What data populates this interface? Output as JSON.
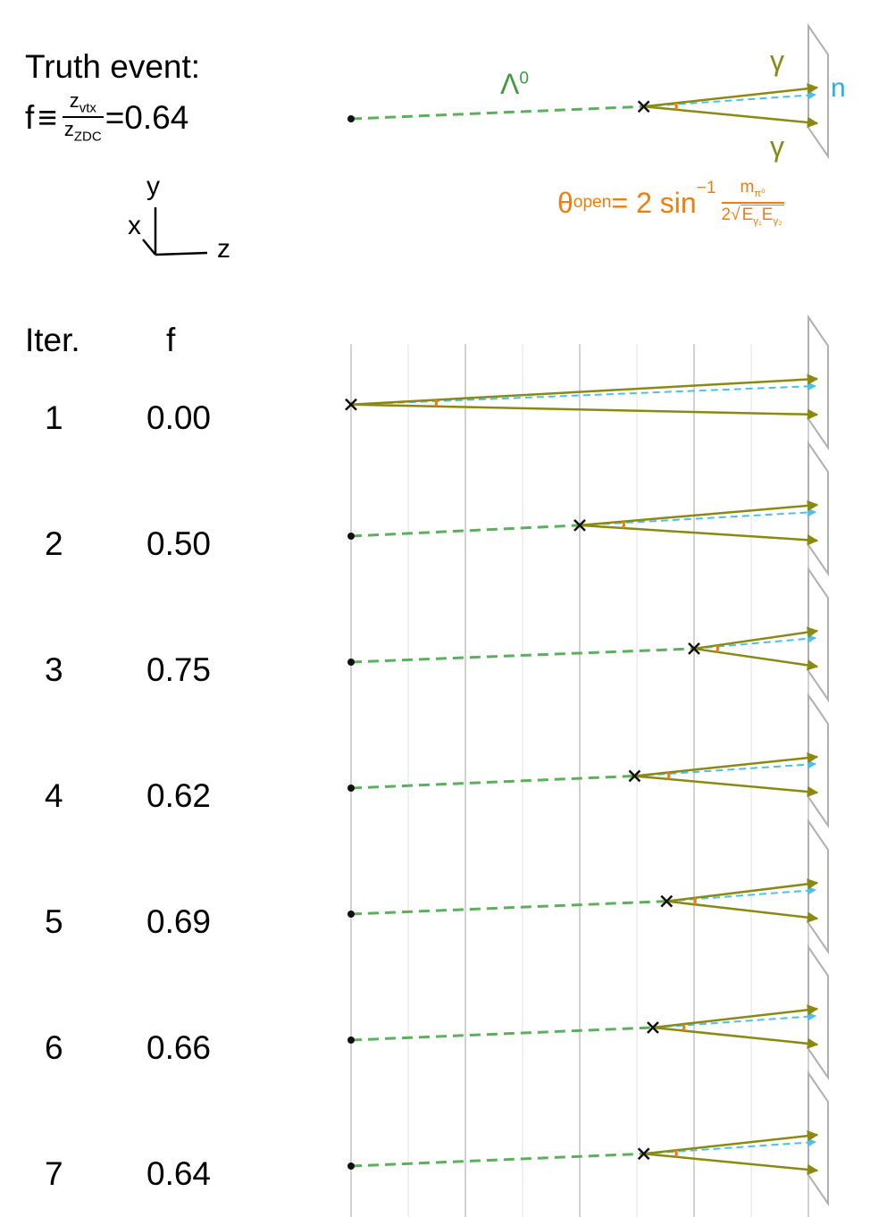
{
  "header": {
    "truth_label": "Truth event:",
    "f_symbol": "f",
    "equiv": "≡",
    "frac_num": "z",
    "frac_num_sub": "vtx",
    "frac_den": "z",
    "frac_den_sub": "ZDC",
    "truth_value": "=0.64"
  },
  "axes": {
    "y": "y",
    "x": "x",
    "z": "z"
  },
  "top_diagram": {
    "lambda_label": "Λ",
    "lambda_sup": "0",
    "gamma_label": "γ",
    "neutron_label": "n",
    "truth_fraction": 0.64,
    "opening_formula": {
      "theta": "θ",
      "theta_sub": "open",
      "eq": " = 2 sin",
      "eq_sup": "−1",
      "num": "m",
      "num_sub": "π⁰",
      "den_prefix": "2",
      "den_radicand": "E",
      "den_sub1": "γ₁",
      "den_sub2": "γ₂"
    }
  },
  "table": {
    "col_iter": "Iter.",
    "col_f": "f",
    "rows": [
      {
        "iter": "1",
        "f": "0.00",
        "f_value": 0.0
      },
      {
        "iter": "2",
        "f": "0.50",
        "f_value": 0.5
      },
      {
        "iter": "3",
        "f": "0.75",
        "f_value": 0.75
      },
      {
        "iter": "4",
        "f": "0.62",
        "f_value": 0.62
      },
      {
        "iter": "5",
        "f": "0.69",
        "f_value": 0.69
      },
      {
        "iter": "6",
        "f": "0.66",
        "f_value": 0.66
      },
      {
        "iter": "7",
        "f": "0.64",
        "f_value": 0.64
      }
    ]
  },
  "colors": {
    "lambda": "#5bb15b",
    "photon": "#8a8a12",
    "neutron": "#4cc0ec",
    "angle": "#f07d0c",
    "detector": "#b0b0b0",
    "grid": "#dedede"
  }
}
